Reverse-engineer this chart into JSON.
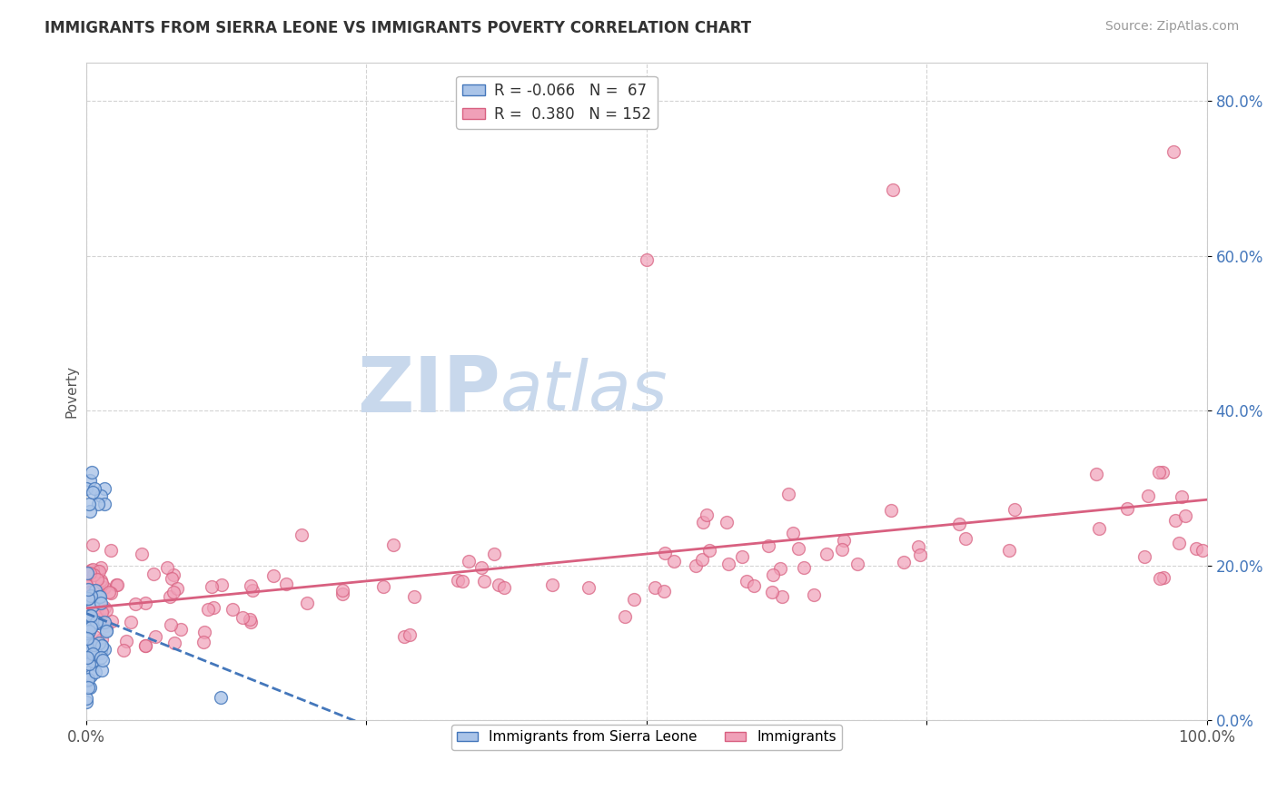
{
  "title": "IMMIGRANTS FROM SIERRA LEONE VS IMMIGRANTS POVERTY CORRELATION CHART",
  "source": "Source: ZipAtlas.com",
  "ylabel": "Poverty",
  "series": [
    {
      "label": "Immigrants from Sierra Leone",
      "R": -0.066,
      "N": 67,
      "color_scatter": "#aac4e8",
      "color_line": "#4477bb",
      "line_style": "--"
    },
    {
      "label": "Immigrants",
      "R": 0.38,
      "N": 152,
      "color_scatter": "#f0a0b8",
      "color_line": "#d86080",
      "line_style": "-"
    }
  ],
  "xlim": [
    0.0,
    1.0
  ],
  "ylim": [
    0.0,
    0.85
  ],
  "yticks": [
    0.0,
    0.2,
    0.4,
    0.6,
    0.8
  ],
  "yticklabels": [
    "0.0%",
    "20.0%",
    "40.0%",
    "60.0%",
    "80.0%"
  ],
  "xticks": [
    0.0,
    0.25,
    0.5,
    0.75,
    1.0
  ],
  "xticklabels": [
    "0.0%",
    "",
    "",
    "",
    "100.0%"
  ],
  "watermark_zip": "ZIP",
  "watermark_atlas": "atlas",
  "watermark_color_zip": "#c8d8ec",
  "watermark_color_atlas": "#c8d8ec",
  "background_color": "#ffffff",
  "grid_color": "#c8c8c8"
}
